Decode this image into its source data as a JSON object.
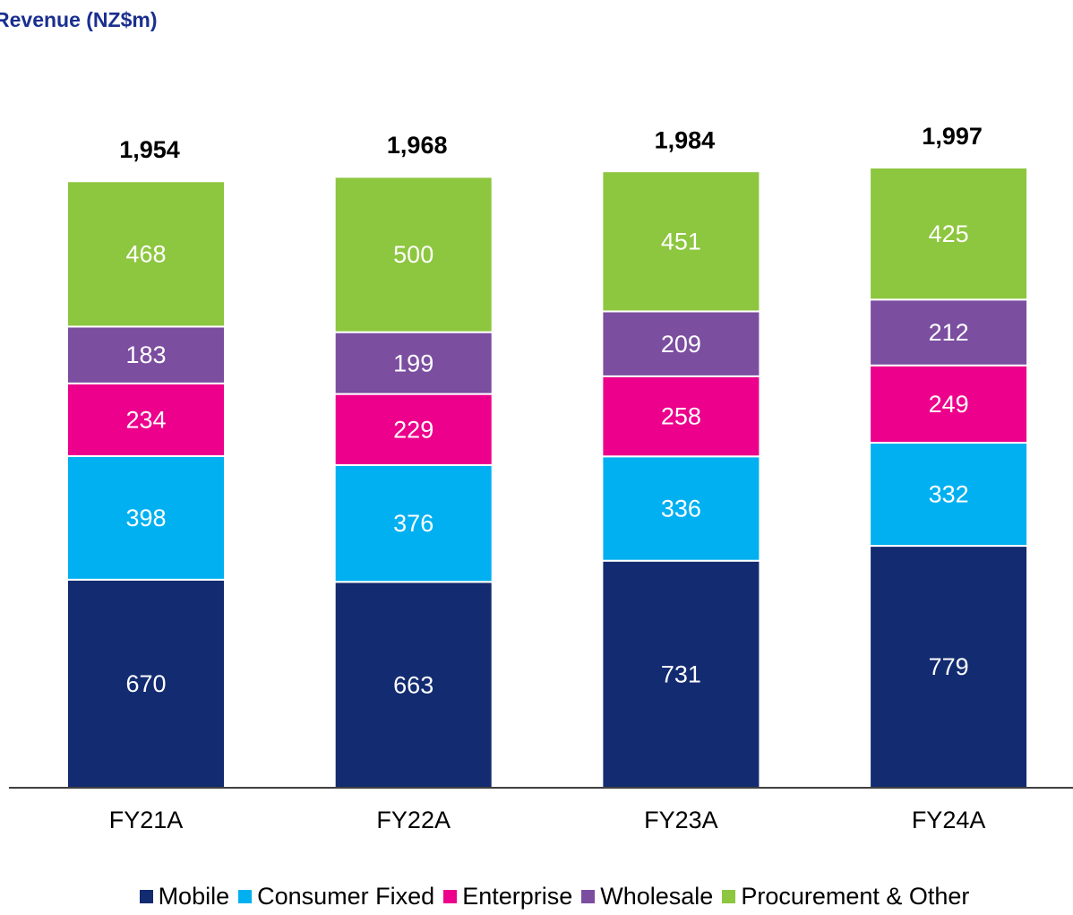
{
  "chart_data": {
    "type": "stacked_bar",
    "title": "Revenue (NZ$m)",
    "categories": [
      "FY21A",
      "FY22A",
      "FY23A",
      "FY24A"
    ],
    "series": [
      {
        "name": "Mobile",
        "color": "#132b70",
        "values": [
          670,
          663,
          731,
          779
        ]
      },
      {
        "name": "Consumer Fixed",
        "color": "#00b0f0",
        "values": [
          398,
          376,
          336,
          332
        ]
      },
      {
        "name": "Enterprise",
        "color": "#ec008c",
        "values": [
          234,
          229,
          258,
          249
        ]
      },
      {
        "name": "Wholesale",
        "color": "#7b4ea0",
        "values": [
          183,
          199,
          209,
          212
        ]
      },
      {
        "name": "Procurement & Other",
        "color": "#8dc63f",
        "values": [
          468,
          500,
          451,
          425
        ]
      }
    ],
    "totals": {
      "values": [
        1954,
        1968,
        1984,
        1997
      ],
      "value_labels": [
        "1,954",
        "1,968",
        "1,984",
        "1,997"
      ]
    },
    "legend": "bottom"
  }
}
